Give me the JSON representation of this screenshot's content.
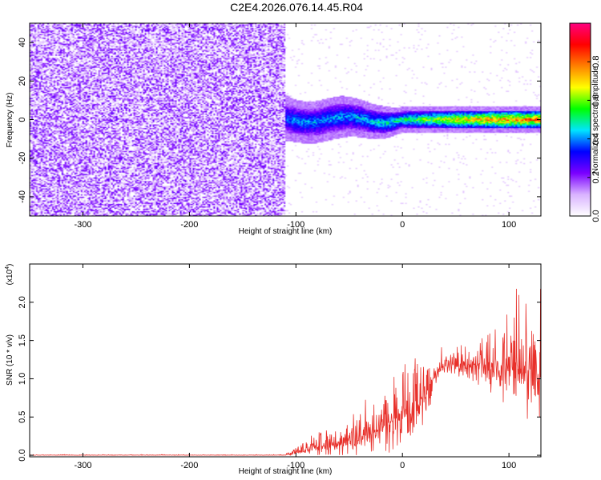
{
  "title": "C2E4.2026.076.14.45.R04",
  "chart_data": [
    {
      "type": "heatmap",
      "xlabel": "Height of straight line (km)",
      "ylabel": "Frequency (Hz)",
      "xlim": [
        -350,
        130
      ],
      "ylim": [
        -50,
        50
      ],
      "xticks": [
        -300,
        -200,
        -100,
        0,
        100
      ],
      "xtick_labels": [
        "-300",
        "-200",
        "-100",
        "0",
        "100"
      ],
      "yticks": [
        -40,
        -20,
        0,
        20,
        40
      ],
      "ytick_labels": [
        "-40",
        "-20",
        "0",
        "20",
        "40"
      ],
      "noise_region_x": [
        -350,
        -110
      ],
      "signal_center_hz": 0,
      "signal_band_profile": [
        {
          "x": -120,
          "halfwidth": 6,
          "amp": 0.35
        },
        {
          "x": -100,
          "halfwidth": 5,
          "amp": 0.45
        },
        {
          "x": -60,
          "halfwidth": 5,
          "amp": 0.45
        },
        {
          "x": -20,
          "halfwidth": 4,
          "amp": 0.5
        },
        {
          "x": 0,
          "halfwidth": 3,
          "amp": 0.55
        },
        {
          "x": 50,
          "halfwidth": 3,
          "amp": 0.75
        },
        {
          "x": 100,
          "halfwidth": 3,
          "amp": 0.85
        },
        {
          "x": 130,
          "halfwidth": 3,
          "amp": 0.85
        }
      ],
      "colorbar": {
        "label": "Normalized spectral amplitude",
        "range": [
          0,
          1
        ],
        "ticks": [
          0.0,
          0.2,
          0.4,
          0.6,
          0.8
        ],
        "tick_labels": [
          "0.0",
          "0.2",
          "0.4",
          "0.6",
          "0.8"
        ],
        "colors": [
          "#ffffff",
          "#d9b3ff",
          "#7a00ff",
          "#0000ff",
          "#00e5ff",
          "#00ff00",
          "#ffff00",
          "#ff8000",
          "#ff0000",
          "#ff0080"
        ]
      }
    },
    {
      "type": "line",
      "xlabel": "Height of straight line (km)",
      "ylabel": "SNR (10 * v/v)",
      "scale_label_base": "(x10",
      "scale_label_exp": "4",
      "scale_label_close": ")",
      "xlim": [
        -350,
        130
      ],
      "ylim": [
        -0.02,
        2.5
      ],
      "xticks": [
        -300,
        -200,
        -100,
        0,
        100
      ],
      "xtick_labels": [
        "-300",
        "-200",
        "-100",
        "0",
        "100"
      ],
      "yticks": [
        0.0,
        0.5,
        1.0,
        1.5,
        2.0
      ],
      "ytick_labels": [
        "0.0",
        "0.5",
        "1.0",
        "1.5",
        "2.0"
      ],
      "line_color": "#e8302a",
      "envelope": [
        {
          "x": -350,
          "base": 0.0,
          "amp": 0.01
        },
        {
          "x": -110,
          "base": 0.0,
          "amp": 0.01
        },
        {
          "x": -100,
          "base": 0.05,
          "amp": 0.12
        },
        {
          "x": -60,
          "base": 0.15,
          "amp": 0.4
        },
        {
          "x": -40,
          "base": 0.25,
          "amp": 0.5
        },
        {
          "x": -20,
          "base": 0.35,
          "amp": 0.6
        },
        {
          "x": 0,
          "base": 0.55,
          "amp": 0.9
        },
        {
          "x": 20,
          "base": 0.75,
          "amp": 0.7
        },
        {
          "x": 35,
          "base": 1.15,
          "amp": 0.25
        },
        {
          "x": 60,
          "base": 1.2,
          "amp": 0.4
        },
        {
          "x": 90,
          "base": 1.15,
          "amp": 0.8
        },
        {
          "x": 110,
          "base": 1.1,
          "amp": 1.2
        },
        {
          "x": 130,
          "base": 1.0,
          "amp": 1.3
        }
      ]
    }
  ]
}
